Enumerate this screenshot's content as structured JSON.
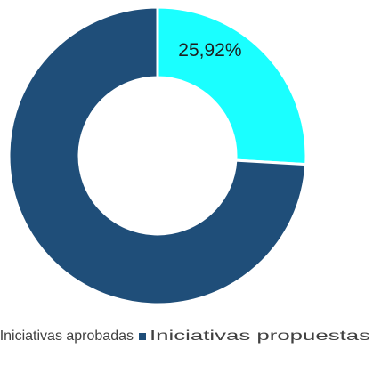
{
  "chart_data": {
    "type": "donut",
    "series": [
      {
        "name": "Iniciativas aprobadas",
        "color": "#1affff",
        "value": 25.92
      },
      {
        "name": "Iniciativas propuestas",
        "color": "#1f4e79",
        "value": 74.08
      }
    ],
    "value_labels": [
      "25,92%",
      null
    ],
    "legend": "bottom"
  }
}
